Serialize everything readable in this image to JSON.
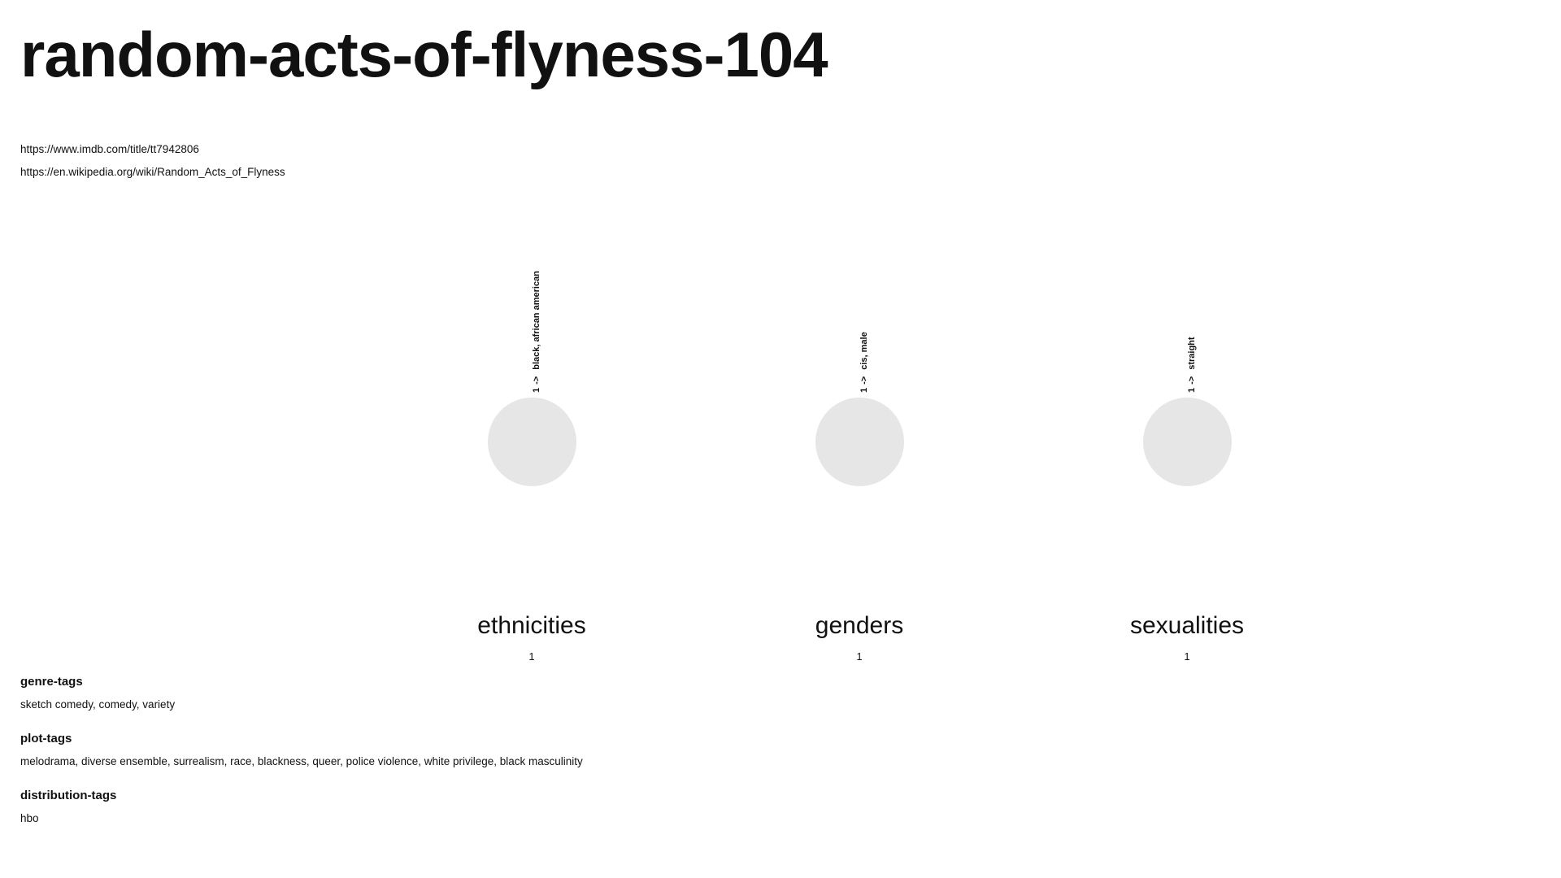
{
  "title": "random-acts-of-flyness-104",
  "links": [
    "https://www.imdb.com/title/tt7942806",
    "https://en.wikipedia.org/wiki/Random_Acts_of_Flyness"
  ],
  "categories": [
    {
      "name": "ethnicities",
      "count": "1",
      "item_count": "1",
      "arrow": "->",
      "item_label": "black, african american"
    },
    {
      "name": "genders",
      "count": "1",
      "item_count": "1",
      "arrow": "->",
      "item_label": "cis, male"
    },
    {
      "name": "sexualities",
      "count": "1",
      "item_count": "1",
      "arrow": "->",
      "item_label": "straight"
    }
  ],
  "tags": {
    "genre": {
      "heading": "genre-tags",
      "values": "sketch comedy, comedy, variety"
    },
    "plot": {
      "heading": "plot-tags",
      "values": "melodrama, diverse ensemble, surrealism, race, blackness, queer, police violence, white privilege, black masculinity"
    },
    "distribution": {
      "heading": "distribution-tags",
      "values": "hbo"
    }
  },
  "colors": {
    "circle": "#e6e6e6",
    "text": "#111111",
    "background": "#ffffff"
  }
}
